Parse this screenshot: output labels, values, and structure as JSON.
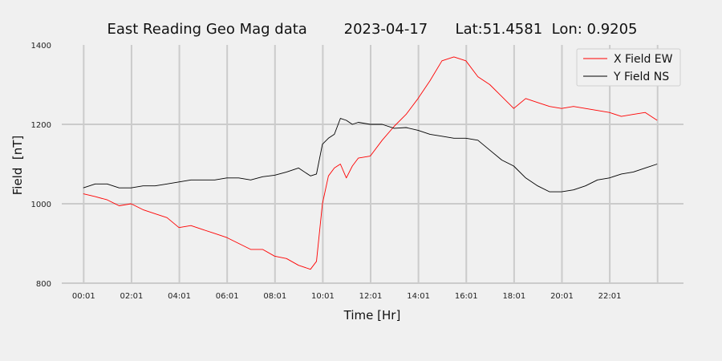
{
  "chart_data": {
    "type": "line",
    "title": "East Reading Geo Mag data        2023-04-17      Lat:51.4581  Lon: 0.9205",
    "xlabel": "Time  [Hr]",
    "ylabel": "Field  [nT]",
    "xlim": [
      -0.9,
      25.1
    ],
    "ylim": [
      800,
      1400
    ],
    "x_ticks": [
      0.0167,
      2.0167,
      4.0167,
      6.0167,
      8.0167,
      10.0167,
      12.0167,
      14.0167,
      16.0167,
      18.0167,
      20.0167,
      22.0167,
      24.0167
    ],
    "x_tick_labels": [
      "00:01",
      "02:01",
      "04:01",
      "06:01",
      "08:01",
      "10:01",
      "12:01",
      "14:01",
      "16:01",
      "18:01",
      "20:01",
      "22:01",
      ""
    ],
    "y_ticks": [
      800,
      1000,
      1200,
      1400
    ],
    "y_tick_labels": [
      "800",
      "1000",
      "1200",
      "1400"
    ],
    "grid": true,
    "legend_position": "top-right",
    "background": "#f0f0f0",
    "grid_color": "#cbcbcb",
    "series": [
      {
        "name": "X Field EW",
        "color": "#ff0000",
        "x": [
          0,
          0.5,
          1.0,
          1.5,
          2.0,
          2.5,
          3.0,
          3.5,
          4.0,
          4.5,
          5.0,
          5.5,
          6.0,
          6.5,
          7.0,
          7.5,
          8.0,
          8.5,
          9.0,
          9.5,
          9.75,
          10.0,
          10.25,
          10.5,
          10.75,
          11.0,
          11.25,
          11.5,
          12.0,
          12.5,
          13.0,
          13.5,
          14.0,
          14.5,
          15.0,
          15.5,
          16.0,
          16.5,
          17.0,
          17.5,
          18.0,
          18.5,
          19.0,
          19.5,
          20.0,
          20.5,
          21.0,
          21.5,
          22.0,
          22.5,
          23.0,
          23.5,
          24.0
        ],
        "y": [
          1025,
          1018,
          1010,
          995,
          1000,
          985,
          975,
          965,
          940,
          945,
          935,
          925,
          915,
          900,
          885,
          885,
          868,
          862,
          845,
          835,
          855,
          1000,
          1070,
          1090,
          1100,
          1065,
          1095,
          1115,
          1120,
          1160,
          1195,
          1225,
          1265,
          1310,
          1360,
          1370,
          1360,
          1320,
          1300,
          1270,
          1240,
          1265,
          1255,
          1245,
          1240,
          1245,
          1240,
          1235,
          1230,
          1220,
          1225,
          1230,
          1210
        ]
      },
      {
        "name": "Y Field NS",
        "color": "#000000",
        "x": [
          0,
          0.5,
          1.0,
          1.5,
          2.0,
          2.5,
          3.0,
          3.5,
          4.0,
          4.5,
          5.0,
          5.5,
          6.0,
          6.5,
          7.0,
          7.5,
          8.0,
          8.5,
          9.0,
          9.5,
          9.75,
          10.0,
          10.25,
          10.5,
          10.75,
          11.0,
          11.25,
          11.5,
          12.0,
          12.5,
          13.0,
          13.5,
          14.0,
          14.5,
          15.0,
          15.5,
          16.0,
          16.5,
          17.0,
          17.5,
          18.0,
          18.5,
          19.0,
          19.5,
          20.0,
          20.5,
          21.0,
          21.5,
          22.0,
          22.5,
          23.0,
          23.5,
          24.0
        ],
        "y": [
          1040,
          1050,
          1050,
          1040,
          1040,
          1045,
          1045,
          1050,
          1055,
          1060,
          1060,
          1060,
          1065,
          1065,
          1060,
          1068,
          1072,
          1080,
          1090,
          1070,
          1075,
          1150,
          1165,
          1175,
          1215,
          1210,
          1200,
          1205,
          1200,
          1200,
          1190,
          1192,
          1185,
          1175,
          1170,
          1165,
          1165,
          1160,
          1135,
          1110,
          1095,
          1065,
          1045,
          1030,
          1030,
          1035,
          1045,
          1060,
          1065,
          1075,
          1080,
          1090,
          1100
        ]
      }
    ]
  }
}
